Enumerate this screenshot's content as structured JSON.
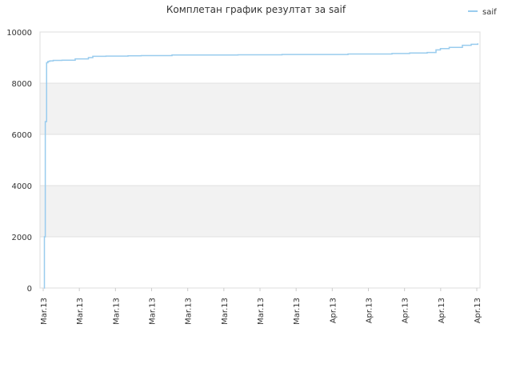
{
  "chart_data": {
    "type": "line",
    "title": "Комплетан график резултат за saif",
    "xlabel": "",
    "ylabel": "",
    "ylim": [
      0,
      10000
    ],
    "yticks": [
      0,
      2000,
      4000,
      6000,
      8000,
      10000
    ],
    "xtick_labels": [
      "Mar.13",
      "Mar.13",
      "Mar.13",
      "Mar.13",
      "Mar.13",
      "Mar.13",
      "Mar.13",
      "Mar.13",
      "Apr.13",
      "Apr.13",
      "Apr.13",
      "Apr.13",
      "Apr.13"
    ],
    "xlim": [
      0,
      100
    ],
    "grid": "alternating horizontal bands",
    "legend_position": "top-right",
    "series": [
      {
        "name": "saif",
        "color": "#99ccee",
        "x": [
          0.9,
          1.0,
          1.2,
          1.5,
          1.8,
          2.2,
          3,
          5,
          8,
          11,
          12,
          15,
          20,
          23,
          30,
          45,
          55,
          70,
          80,
          84,
          88,
          90,
          91,
          93,
          96,
          98,
          99.5
        ],
        "y": [
          0,
          2000,
          6500,
          8800,
          8850,
          8870,
          8890,
          8900,
          8950,
          9000,
          9050,
          9060,
          9070,
          9080,
          9100,
          9110,
          9120,
          9140,
          9160,
          9180,
          9200,
          9300,
          9350,
          9400,
          9480,
          9520,
          9560
        ]
      }
    ]
  }
}
